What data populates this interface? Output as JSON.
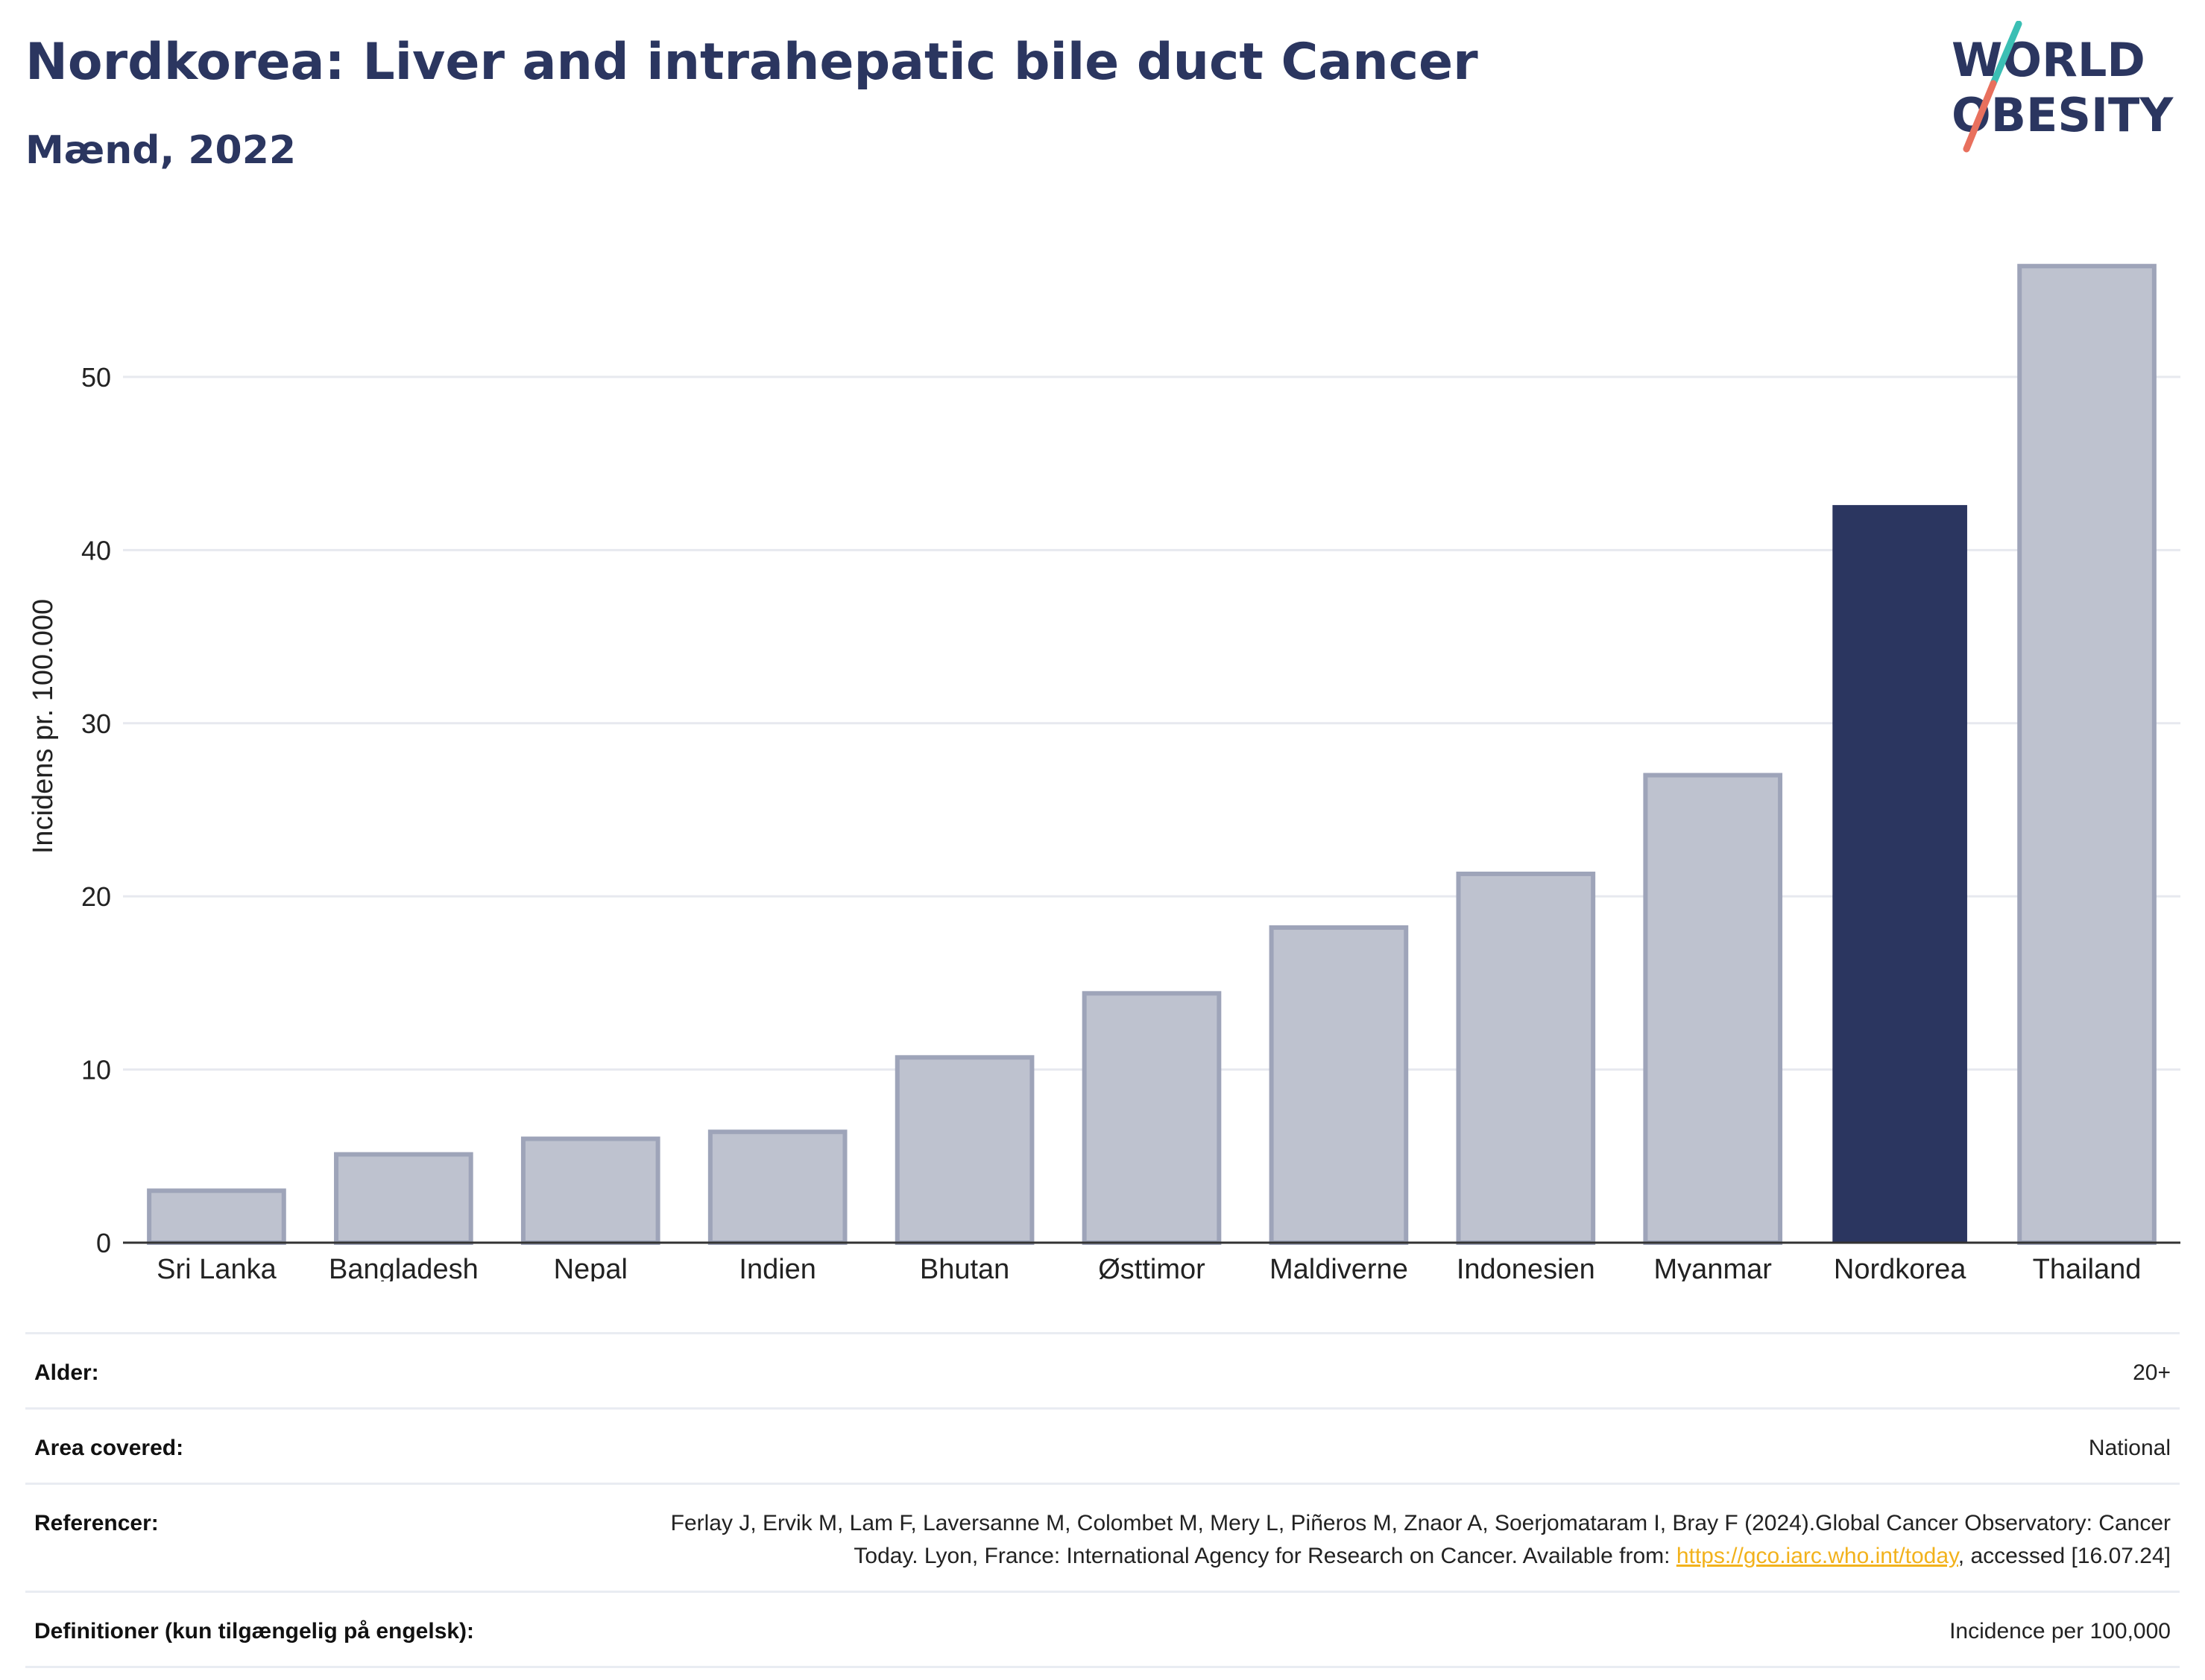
{
  "header": {
    "title": "Nordkorea: Liver and intrahepatic bile duct Cancer",
    "subtitle": "Mænd, 2022"
  },
  "logo": {
    "line1": "WORLD",
    "line2": "OBESITY",
    "colors": {
      "text": "#2b3660",
      "slash_top": "#3bbfb4",
      "slash_bottom": "#e8705d"
    }
  },
  "chart_data": {
    "type": "bar",
    "ylabel": "Incidens pr. 100.000",
    "ylim": [
      0,
      58
    ],
    "yticks": [
      0,
      10,
      20,
      30,
      40,
      50
    ],
    "grid": true,
    "categories": [
      "Sri Lanka",
      "Bangladesh",
      "Nepal",
      "Indien",
      "Bhutan",
      "Østtimor",
      "Maldiverne",
      "Indonesien",
      "Myanmar",
      "Nordkorea",
      "Thailand"
    ],
    "values": [
      3.0,
      5.1,
      6.0,
      6.4,
      10.7,
      14.4,
      18.2,
      21.3,
      27.0,
      42.6,
      56.4
    ],
    "highlight": "Nordkorea",
    "colors": {
      "bar": "#bec2cf",
      "bar_stroke": "#9ea4b9",
      "highlight": "#2b3660",
      "grid": "#e7e9ef",
      "axis": "#333333"
    }
  },
  "meta": {
    "rows": [
      {
        "label": "Alder:",
        "value": "20+"
      },
      {
        "label": "Area covered:",
        "value": "National"
      },
      {
        "label": "Referencer:",
        "value_pre": "Ferlay J, Ervik M, Lam F, Laversanne M, Colombet M, Mery L, Piñeros M, Znaor A, Soerjomataram I, Bray F (2024).Global Cancer Observatory: Cancer Today. Lyon, France: International Agency for Research on Cancer. Available from: ",
        "link": "https://gco.iarc.who.int/today",
        "value_post": ", accessed [16.07.24]"
      },
      {
        "label": "Definitioner (kun tilgængelig på engelsk):",
        "value": "Incidence per 100,000"
      }
    ]
  }
}
